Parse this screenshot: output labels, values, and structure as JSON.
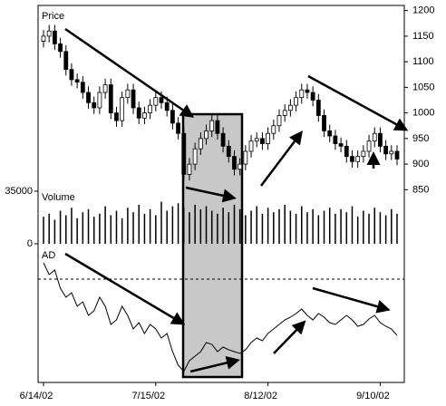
{
  "chart_data": [
    {
      "type": "candlestick",
      "title": "Price",
      "categories": [
        "6/14/02",
        null,
        null,
        null,
        null,
        null,
        null,
        null,
        null,
        null,
        null,
        null,
        null,
        null,
        null,
        null,
        null,
        null,
        null,
        null,
        "7/15/02",
        null,
        null,
        null,
        null,
        null,
        null,
        null,
        null,
        null,
        null,
        null,
        null,
        null,
        null,
        null,
        null,
        null,
        null,
        null,
        "8/12/02",
        null,
        null,
        null,
        null,
        null,
        null,
        null,
        null,
        null,
        null,
        null,
        null,
        null,
        null,
        null,
        null,
        null,
        null,
        null,
        "9/10/02",
        null,
        null,
        null
      ],
      "open": [
        1140,
        1150,
        1160,
        1135,
        1120,
        1085,
        1065,
        1060,
        1040,
        1020,
        1010,
        1040,
        1055,
        1000,
        985,
        1030,
        1045,
        1010,
        990,
        1000,
        1015,
        1030,
        1020,
        1005,
        980,
        960,
        880,
        900,
        930,
        950,
        965,
        985,
        960,
        935,
        915,
        890,
        900,
        925,
        945,
        950,
        940,
        960,
        975,
        995,
        1005,
        1015,
        1030,
        1045,
        1040,
        1025,
        995,
        965,
        955,
        940,
        935,
        915,
        905,
        915,
        925,
        945,
        960,
        935,
        920,
        925
      ],
      "high": [
        1162,
        1172,
        1172,
        1147,
        1132,
        1097,
        1077,
        1072,
        1052,
        1032,
        1052,
        1067,
        1067,
        1012,
        1042,
        1057,
        1057,
        1022,
        1012,
        1027,
        1042,
        1042,
        1032,
        1017,
        992,
        972,
        912,
        942,
        962,
        977,
        997,
        997,
        972,
        947,
        927,
        912,
        937,
        957,
        962,
        962,
        972,
        987,
        1007,
        1017,
        1027,
        1042,
        1057,
        1057,
        1052,
        1037,
        1007,
        977,
        967,
        952,
        947,
        927,
        927,
        937,
        957,
        972,
        972,
        947,
        937,
        937
      ],
      "low": [
        1128,
        1138,
        1123,
        1108,
        1073,
        1053,
        1048,
        1028,
        1008,
        998,
        998,
        1028,
        988,
        973,
        973,
        1018,
        998,
        978,
        978,
        988,
        1003,
        1008,
        993,
        968,
        948,
        868,
        868,
        888,
        918,
        938,
        953,
        948,
        923,
        903,
        878,
        878,
        888,
        913,
        933,
        928,
        928,
        948,
        963,
        983,
        993,
        1003,
        1018,
        1028,
        1013,
        983,
        953,
        943,
        928,
        923,
        903,
        893,
        893,
        903,
        913,
        933,
        923,
        908,
        908,
        898
      ],
      "close": [
        1150,
        1160,
        1135,
        1120,
        1085,
        1065,
        1060,
        1040,
        1020,
        1010,
        1040,
        1055,
        1000,
        985,
        1030,
        1045,
        1010,
        990,
        1000,
        1015,
        1030,
        1020,
        1005,
        980,
        960,
        880,
        900,
        930,
        950,
        965,
        985,
        960,
        935,
        915,
        890,
        900,
        925,
        945,
        950,
        940,
        960,
        975,
        995,
        1005,
        1015,
        1030,
        1045,
        1040,
        1025,
        995,
        965,
        955,
        940,
        935,
        915,
        905,
        915,
        925,
        945,
        960,
        935,
        920,
        925,
        910
      ],
      "ylim": [
        840,
        1210
      ],
      "yticks": [
        850,
        900,
        950,
        1000,
        1050,
        1100,
        1150,
        1200
      ],
      "color": "#000000"
    },
    {
      "type": "bar",
      "title": "Volume",
      "values": [
        18000,
        20000,
        16000,
        22000,
        19000,
        24000,
        17000,
        21000,
        23000,
        18000,
        20000,
        25000,
        19000,
        22000,
        17000,
        24000,
        21000,
        26000,
        20000,
        23000,
        19000,
        28000,
        22000,
        25000,
        27000,
        24000,
        21000,
        26000,
        23000,
        25000,
        22000,
        20000,
        24000,
        21000,
        26000,
        23000,
        19000,
        22000,
        25000,
        20000,
        24000,
        21000,
        23000,
        26000,
        22000,
        20000,
        25000,
        21000,
        23000,
        19000,
        22000,
        24000,
        20000,
        23000,
        21000,
        25000,
        18000,
        22000,
        20000,
        24000,
        21000,
        19000,
        23000,
        20000
      ],
      "ylim": [
        0,
        38000
      ],
      "yticks": [
        0,
        35000
      ],
      "color": "#000000"
    },
    {
      "type": "line",
      "title": "AD",
      "values": [
        18,
        5,
        10,
        -10,
        -20,
        -15,
        -30,
        -25,
        -40,
        -35,
        -20,
        -30,
        -50,
        -45,
        -30,
        -40,
        -55,
        -48,
        -60,
        -50,
        -55,
        -65,
        -60,
        -80,
        -95,
        -102,
        -90,
        -85,
        -80,
        -70,
        -72,
        -80,
        -75,
        -78,
        -80,
        -82,
        -78,
        -70,
        -65,
        -68,
        -60,
        -55,
        -50,
        -45,
        -42,
        -38,
        -33,
        -40,
        -45,
        -38,
        -42,
        -48,
        -50,
        -45,
        -40,
        -45,
        -52,
        -50,
        -44,
        -40,
        -48,
        -52,
        -55,
        -62
      ],
      "ylim": [
        -110,
        30
      ],
      "reference_line": 0,
      "color": "#000000"
    }
  ]
}
